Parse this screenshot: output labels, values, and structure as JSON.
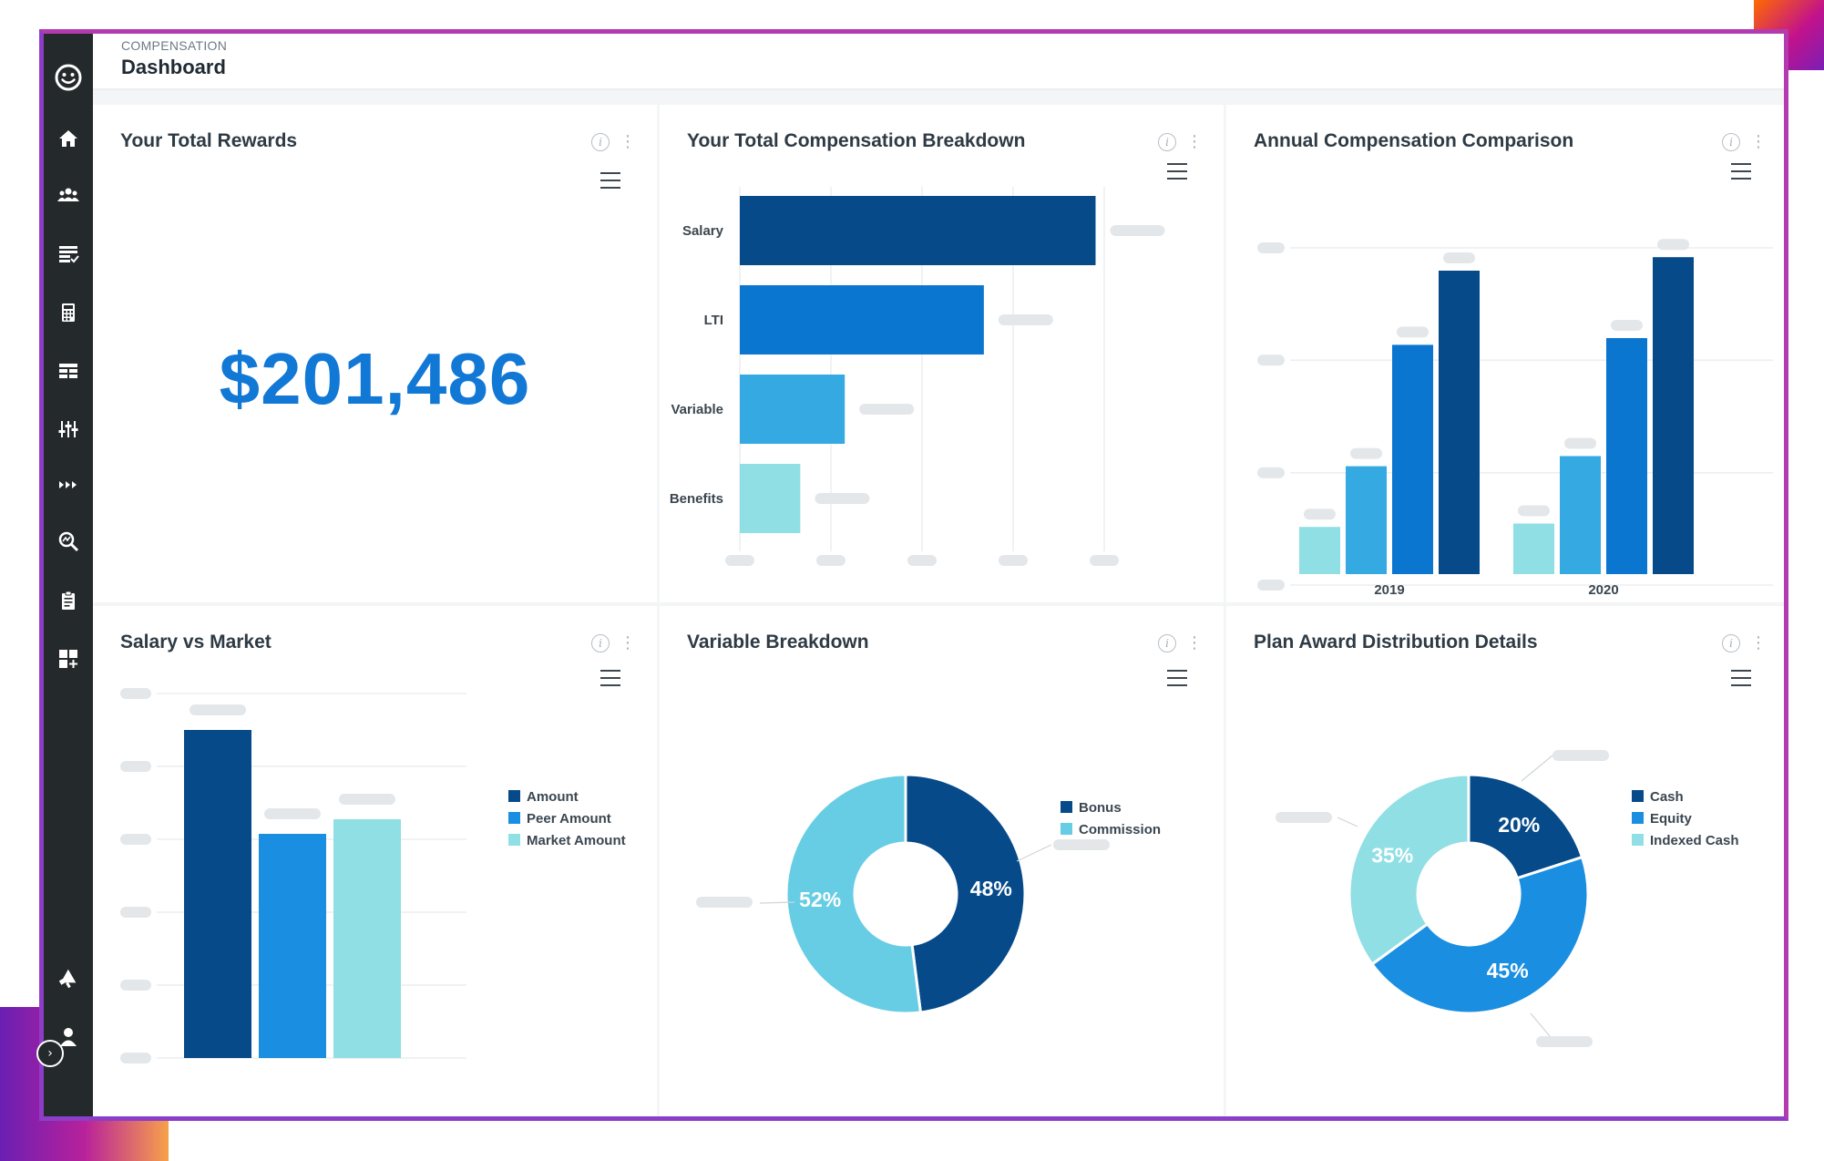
{
  "header": {
    "breadcrumb": "COMPENSATION",
    "title": "Dashboard"
  },
  "sidebar": {
    "icons": [
      "smiley-logo-icon",
      "home-icon",
      "team-icon",
      "list-check-icon",
      "calculator-icon",
      "grid-table-icon",
      "sliders-icon",
      "forward-arrows-icon",
      "analytics-search-icon",
      "clipboard-icon",
      "add-widget-icon",
      "megaphone-icon",
      "user-profile-icon",
      "expand-chevron-icon"
    ]
  },
  "colors": {
    "dark_blue": "#064a8a",
    "mid_blue": "#0b76cf",
    "blue": "#1a8ee1",
    "sky": "#35a9e2",
    "light_cyan": "#90dfe4",
    "teal": "#67cde4",
    "accent_text": "#1278d6"
  },
  "cards": {
    "total_rewards": {
      "title": "Your Total Rewards",
      "value": "$201,486"
    },
    "comp_breakdown": {
      "title": "Your Total Compensation Breakdown"
    },
    "annual_comparison": {
      "title": "Annual Compensation Comparison"
    },
    "salary_market": {
      "title": "Salary vs Market"
    },
    "variable_breakdown": {
      "title": "Variable Breakdown"
    },
    "plan_award": {
      "title": "Plan Award Distribution Details"
    }
  },
  "chart_data": [
    {
      "id": "comp_breakdown",
      "type": "bar",
      "orientation": "horizontal",
      "categories": [
        "Salary",
        "LTI",
        "Variable",
        "Benefits"
      ],
      "values": [
        100,
        68.6,
        29.5,
        17
      ],
      "value_scale": "relative (axis and data labels hidden by placeholders)",
      "xlim": [
        0,
        105
      ],
      "grid": true
    },
    {
      "id": "annual_comparison",
      "type": "bar",
      "categories": [
        "2019",
        "2020"
      ],
      "series": [
        {
          "values": [
            14,
            15
          ]
        },
        {
          "values": [
            32,
            35
          ]
        },
        {
          "values": [
            68,
            70
          ]
        },
        {
          "values": [
            90,
            94
          ]
        }
      ],
      "ylim": [
        0,
        100
      ],
      "grid": true
    },
    {
      "id": "salary_market",
      "type": "bar",
      "series": [
        {
          "name": "Amount",
          "values": [
            90
          ]
        },
        {
          "name": "Peer Amount",
          "values": [
            61.5
          ]
        },
        {
          "name": "Market Amount",
          "values": [
            65.5
          ]
        }
      ],
      "ylim": [
        0,
        100
      ],
      "grid": true,
      "legend": "right"
    },
    {
      "id": "variable_breakdown",
      "type": "pie",
      "donut": true,
      "slices": [
        {
          "name": "Bonus",
          "value": 48,
          "label": "48%"
        },
        {
          "name": "Commission",
          "value": 52,
          "label": "52%"
        }
      ],
      "legend": "right"
    },
    {
      "id": "plan_award",
      "type": "pie",
      "donut": true,
      "slices": [
        {
          "name": "Cash",
          "value": 20,
          "label": "20%"
        },
        {
          "name": "Equity",
          "value": 45,
          "label": "45%"
        },
        {
          "name": "Indexed Cash",
          "value": 35,
          "label": "35%"
        }
      ],
      "legend": "right"
    }
  ]
}
